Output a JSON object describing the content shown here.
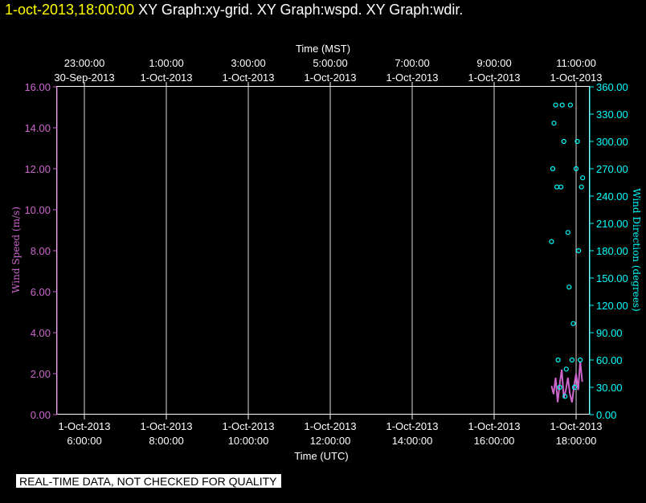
{
  "header": {
    "timestamp": "1-oct-2013,18:00:00",
    "graphs": "XY Graph:xy-grid.  XY Graph:wspd.  XY Graph:wdir."
  },
  "notice": "REAL-TIME DATA, NOT CHECKED FOR QUALITY",
  "colors": {
    "speed": "#cc66cc",
    "direction": "#00ffff",
    "grid": "#ffffff",
    "background": "#000000",
    "timestamp": "#ffff00"
  },
  "chart_data": {
    "type": "scatter",
    "xlabel_bottom": "Time (UTC)",
    "xlabel_top": "Time (MST)",
    "ylabel_left": "Wind Speed (m/s)",
    "ylabel_right": "Wind Direction (degrees)",
    "x_range_utc_hours": [
      5.333,
      18.333
    ],
    "grid": true,
    "bottom_ticks": [
      {
        "hour": 6,
        "date": "1-Oct-2013",
        "time": "6:00:00"
      },
      {
        "hour": 8,
        "date": "1-Oct-2013",
        "time": "8:00:00"
      },
      {
        "hour": 10,
        "date": "1-Oct-2013",
        "time": "10:00:00"
      },
      {
        "hour": 12,
        "date": "1-Oct-2013",
        "time": "12:00:00"
      },
      {
        "hour": 14,
        "date": "1-Oct-2013",
        "time": "14:00:00"
      },
      {
        "hour": 16,
        "date": "1-Oct-2013",
        "time": "16:00:00"
      },
      {
        "hour": 18,
        "date": "1-Oct-2013",
        "time": "18:00:00"
      }
    ],
    "top_ticks": [
      {
        "hour": 6,
        "time": "23:00:00",
        "date": "30-Sep-2013"
      },
      {
        "hour": 8,
        "time": "1:00:00",
        "date": "1-Oct-2013"
      },
      {
        "hour": 10,
        "time": "3:00:00",
        "date": "1-Oct-2013"
      },
      {
        "hour": 12,
        "time": "5:00:00",
        "date": "1-Oct-2013"
      },
      {
        "hour": 14,
        "time": "7:00:00",
        "date": "1-Oct-2013"
      },
      {
        "hour": 16,
        "time": "9:00:00",
        "date": "1-Oct-2013"
      },
      {
        "hour": 18,
        "time": "11:00:00",
        "date": "1-Oct-2013"
      }
    ],
    "left_axis": {
      "range": [
        0,
        16
      ],
      "ticks": [
        "0.00",
        "2.00",
        "4.00",
        "6.00",
        "8.00",
        "10.00",
        "12.00",
        "14.00",
        "16.00"
      ]
    },
    "right_axis": {
      "range": [
        0,
        360
      ],
      "ticks": [
        "0.00",
        "30.00",
        "60.00",
        "90.00",
        "120.00",
        "150.00",
        "180.00",
        "210.00",
        "240.00",
        "270.00",
        "300.00",
        "330.00",
        "360.00"
      ]
    },
    "series": [
      {
        "type": "line",
        "axis": "left",
        "x": [
          17.4,
          17.45,
          17.5,
          17.55,
          17.6,
          17.65,
          17.7,
          17.75,
          17.8,
          17.85,
          17.9,
          17.95,
          18.0,
          18.05,
          18.1,
          18.15
        ],
        "y": [
          1.4,
          1.0,
          1.8,
          0.6,
          1.5,
          2.2,
          0.8,
          1.2,
          1.8,
          1.0,
          0.6,
          1.4,
          2.0,
          1.2,
          2.6,
          1.6
        ]
      },
      {
        "type": "scatter",
        "axis": "right",
        "x": [
          17.4,
          17.43,
          17.46,
          17.5,
          17.53,
          17.56,
          17.6,
          17.63,
          17.66,
          17.7,
          17.73,
          17.76,
          17.8,
          17.83,
          17.86,
          17.9,
          17.93,
          17.96,
          18.0,
          18.03,
          18.06,
          18.1,
          18.13,
          18.16
        ],
        "y": [
          190,
          270,
          320,
          340,
          250,
          60,
          30,
          250,
          340,
          300,
          20,
          50,
          200,
          140,
          340,
          60,
          100,
          30,
          270,
          300,
          180,
          60,
          250,
          260
        ]
      }
    ]
  }
}
